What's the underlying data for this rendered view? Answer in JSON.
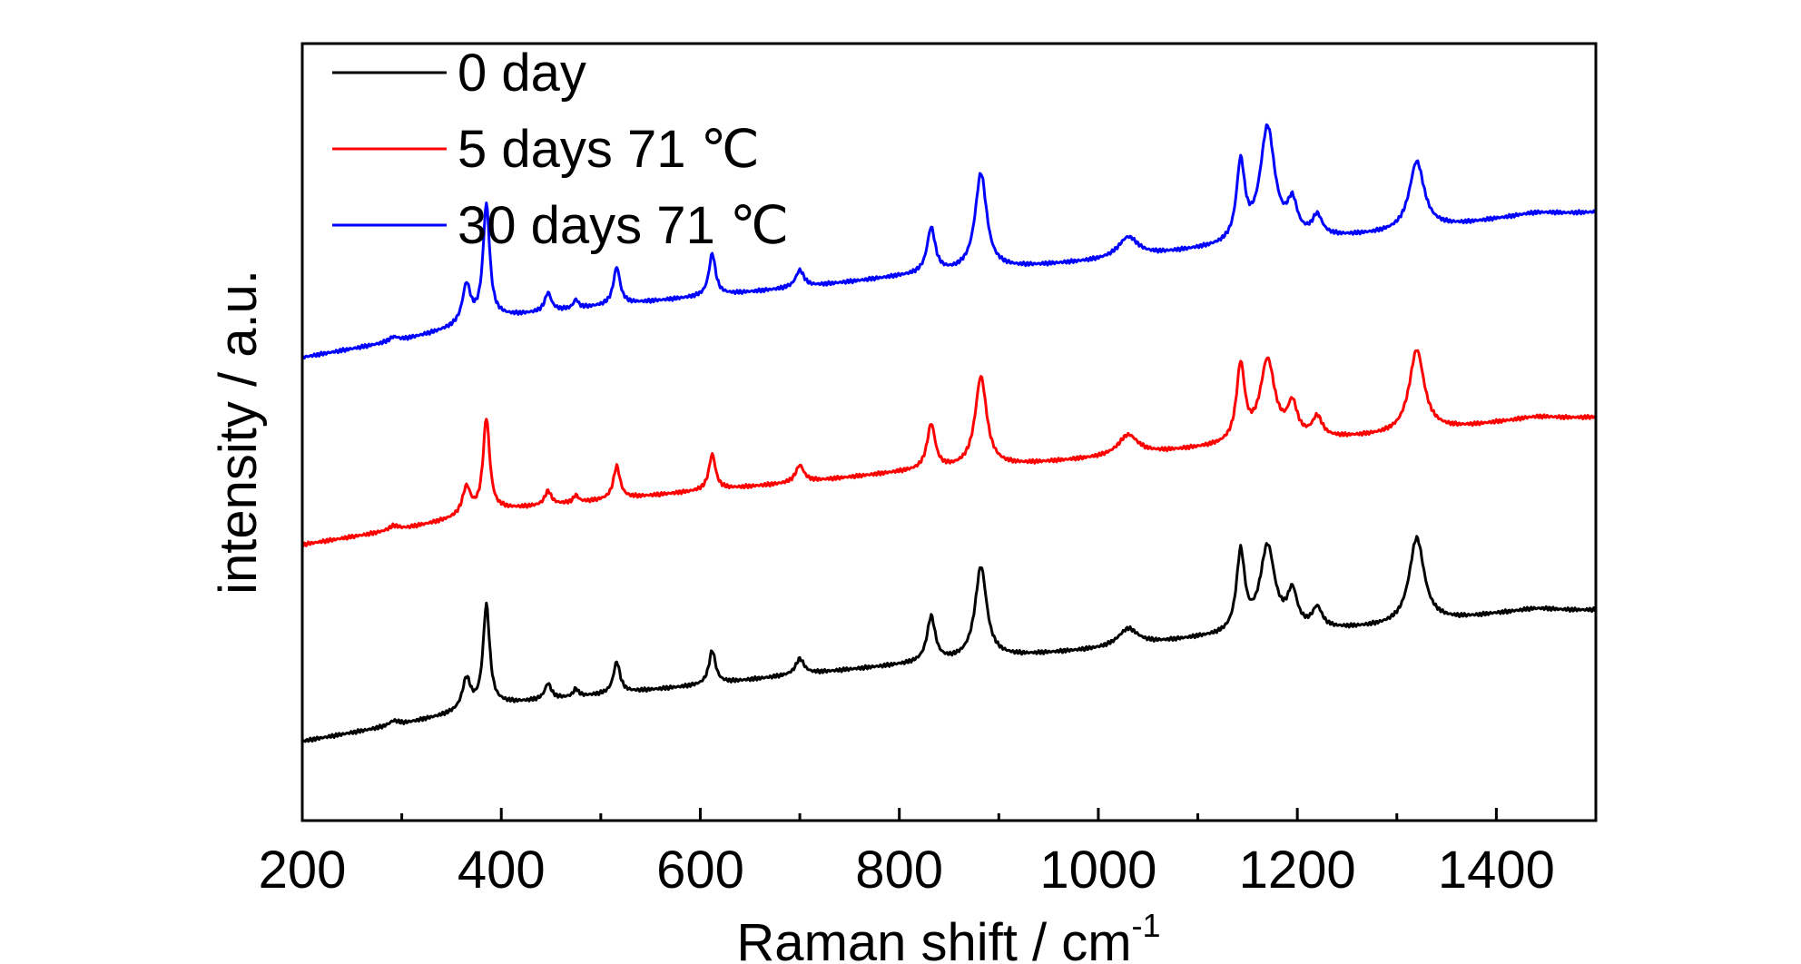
{
  "chart_data": {
    "type": "line",
    "title": "",
    "xlabel": "Raman shift / cm",
    "xlabel_superscript": "-1",
    "ylabel": "intensity / a.u.",
    "xlim": [
      200,
      1500
    ],
    "ylim": [
      0,
      100
    ],
    "x_ticks": [
      200,
      400,
      600,
      800,
      1000,
      1200,
      1400
    ],
    "x_tick_labels": [
      "200",
      "400",
      "600",
      "800",
      "1000",
      "1200",
      "1400"
    ],
    "y_tick_labels": "none",
    "grid": false,
    "legend_position": "top-left",
    "colors": {
      "0 day": "#000000",
      "5 days 71 ℃": "#ff0000",
      "30 days 71 ℃": "#0000ff"
    },
    "peaks_cm-1": [
      365,
      385,
      447,
      475,
      516,
      612,
      700,
      832,
      882,
      1030,
      1143,
      1170,
      1195,
      1220,
      1320
    ],
    "series": [
      {
        "name": "0 day",
        "color": "#000000",
        "baseline": {
          "x": [
            200,
            300,
            400,
            500,
            600,
            700,
            800,
            900,
            1000,
            1100,
            1200,
            1300,
            1400,
            1500
          ],
          "y": [
            10.2,
            12.4,
            15.0,
            16.2,
            17.4,
            18.8,
            20.0,
            21.0,
            22.0,
            23.4,
            24.2,
            25.0,
            26.4,
            27.0
          ]
        },
        "peaks": [
          {
            "x": 292,
            "height": 0.6,
            "width": 6
          },
          {
            "x": 365,
            "height": 4.0,
            "width": 5
          },
          {
            "x": 385,
            "height": 13.0,
            "width": 4
          },
          {
            "x": 447,
            "height": 2.0,
            "width": 4
          },
          {
            "x": 475,
            "height": 1.0,
            "width": 3
          },
          {
            "x": 516,
            "height": 4.0,
            "width": 4
          },
          {
            "x": 612,
            "height": 4.3,
            "width": 4
          },
          {
            "x": 700,
            "height": 2.0,
            "width": 5
          },
          {
            "x": 832,
            "height": 5.8,
            "width": 5
          },
          {
            "x": 882,
            "height": 11.8,
            "width": 7
          },
          {
            "x": 1030,
            "height": 2.2,
            "width": 12
          },
          {
            "x": 1143,
            "height": 10.2,
            "width": 5
          },
          {
            "x": 1170,
            "height": 11.0,
            "width": 9
          },
          {
            "x": 1195,
            "height": 4.6,
            "width": 6
          },
          {
            "x": 1220,
            "height": 2.6,
            "width": 6
          },
          {
            "x": 1320,
            "height": 11.0,
            "width": 9
          },
          {
            "x": 1440,
            "height": 0.6,
            "width": 30
          }
        ]
      },
      {
        "name": "5 days 71 ℃",
        "color": "#ff0000",
        "baseline": {
          "x": [
            200,
            300,
            400,
            500,
            600,
            700,
            800,
            900,
            1000,
            1100,
            1200,
            1300,
            1400,
            1500
          ],
          "y": [
            35.5,
            37.5,
            40.0,
            41.2,
            42.4,
            43.5,
            44.8,
            45.6,
            46.6,
            47.8,
            48.8,
            49.6,
            51.0,
            51.8
          ]
        },
        "peaks": [
          {
            "x": 292,
            "height": 0.6,
            "width": 6
          },
          {
            "x": 365,
            "height": 3.6,
            "width": 5
          },
          {
            "x": 385,
            "height": 12.0,
            "width": 4
          },
          {
            "x": 447,
            "height": 1.8,
            "width": 4
          },
          {
            "x": 475,
            "height": 0.9,
            "width": 3
          },
          {
            "x": 516,
            "height": 4.2,
            "width": 4
          },
          {
            "x": 612,
            "height": 4.6,
            "width": 4
          },
          {
            "x": 700,
            "height": 2.2,
            "width": 5
          },
          {
            "x": 832,
            "height": 5.8,
            "width": 5
          },
          {
            "x": 882,
            "height": 11.6,
            "width": 7
          },
          {
            "x": 1030,
            "height": 2.6,
            "width": 12
          },
          {
            "x": 1143,
            "height": 9.8,
            "width": 5
          },
          {
            "x": 1170,
            "height": 10.4,
            "width": 9
          },
          {
            "x": 1195,
            "height": 4.2,
            "width": 6
          },
          {
            "x": 1220,
            "height": 2.6,
            "width": 6
          },
          {
            "x": 1320,
            "height": 10.6,
            "width": 9
          },
          {
            "x": 1440,
            "height": 0.6,
            "width": 30
          }
        ]
      },
      {
        "name": "30 days 71 ℃",
        "color": "#0000ff",
        "baseline": {
          "x": [
            200,
            300,
            400,
            500,
            600,
            700,
            800,
            900,
            1000,
            1100,
            1200,
            1300,
            1400,
            1500
          ],
          "y": [
            59.6,
            61.8,
            64.8,
            66.2,
            67.4,
            68.6,
            70.0,
            71.0,
            72.0,
            73.4,
            74.6,
            75.6,
            77.2,
            78.2
          ]
        },
        "peaks": [
          {
            "x": 292,
            "height": 0.6,
            "width": 6
          },
          {
            "x": 365,
            "height": 5.0,
            "width": 5
          },
          {
            "x": 385,
            "height": 14.8,
            "width": 4
          },
          {
            "x": 447,
            "height": 2.4,
            "width": 4
          },
          {
            "x": 475,
            "height": 1.1,
            "width": 3
          },
          {
            "x": 516,
            "height": 4.8,
            "width": 4
          },
          {
            "x": 612,
            "height": 5.4,
            "width": 4
          },
          {
            "x": 700,
            "height": 2.2,
            "width": 5
          },
          {
            "x": 832,
            "height": 5.8,
            "width": 5
          },
          {
            "x": 882,
            "height": 12.4,
            "width": 7
          },
          {
            "x": 1030,
            "height": 2.6,
            "width": 12
          },
          {
            "x": 1143,
            "height": 10.0,
            "width": 5
          },
          {
            "x": 1170,
            "height": 14.6,
            "width": 9
          },
          {
            "x": 1195,
            "height": 4.2,
            "width": 6
          },
          {
            "x": 1220,
            "height": 2.6,
            "width": 6
          },
          {
            "x": 1320,
            "height": 8.8,
            "width": 9
          },
          {
            "x": 1440,
            "height": 0.6,
            "width": 30
          }
        ]
      }
    ]
  }
}
